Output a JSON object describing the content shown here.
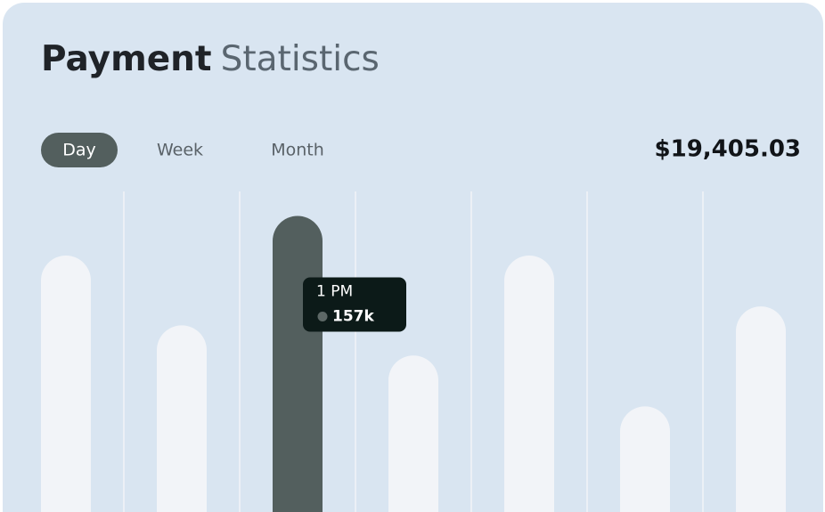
{
  "header": {
    "title_strong": "Payment",
    "title_light": "Statistics"
  },
  "tabs": [
    "Day",
    "Week",
    "Month"
  ],
  "total": "$19,405.03",
  "chart_data": {
    "type": "bar",
    "categories": [
      null,
      null,
      "1 PM",
      null,
      null,
      null,
      null
    ],
    "values": [
      136,
      99,
      157,
      83,
      136,
      56,
      109
    ],
    "value_labels": [
      null,
      null,
      "157k",
      null,
      null,
      null,
      null
    ],
    "colors": [
      "#f2f4f8",
      "#f2f4f8",
      "#535f5e",
      "#f2f4f8",
      "#f2f4f8",
      "#f2f4f8",
      "#f2f4f8"
    ],
    "ylim": [
      0,
      170
    ]
  }
}
